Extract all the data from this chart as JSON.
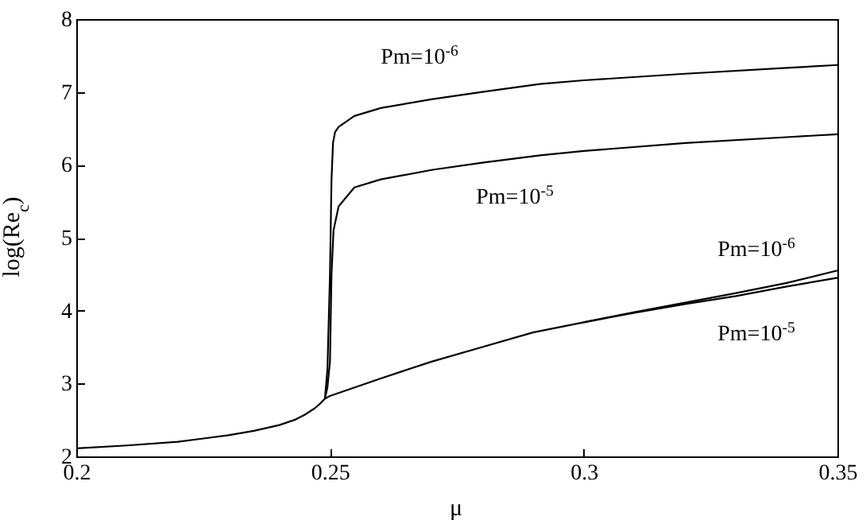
{
  "chart_data": {
    "type": "line",
    "xlabel": "μ",
    "ylabel": "log(Re$_{c}$)",
    "xlim": [
      0.2,
      0.35
    ],
    "xticks": [
      0.2,
      0.25,
      0.3,
      0.35
    ],
    "ylim": [
      2,
      8
    ],
    "yticks": [
      2,
      3,
      4,
      5,
      6,
      7,
      8
    ],
    "grid": false,
    "marker": "none",
    "line_style": "solid",
    "series": [
      {
        "color": "#000000",
        "x": [
          0.2,
          0.21,
          0.22,
          0.23,
          0.235,
          0.24,
          0.243,
          0.245,
          0.247,
          0.248,
          0.249,
          0.2495,
          0.25,
          0.2503,
          0.2506,
          0.251,
          0.2517,
          0.2548,
          0.26,
          0.27,
          0.28,
          0.2914,
          0.3,
          0.32,
          0.34,
          0.35
        ],
        "values": [
          2.11,
          2.15,
          2.2,
          2.29,
          2.35,
          2.43,
          2.5,
          2.57,
          2.66,
          2.72,
          2.79,
          3.2,
          4.5,
          5.8,
          6.3,
          6.45,
          6.52,
          6.67,
          6.78,
          6.9,
          7.0,
          7.11,
          7.16,
          7.25,
          7.33,
          7.37
        ]
      },
      {
        "color": "#000000",
        "x": [
          0.249,
          0.2495,
          0.25,
          0.2503,
          0.2507,
          0.2517,
          0.2548,
          0.26,
          0.27,
          0.28,
          0.2914,
          0.3,
          0.32,
          0.34,
          0.35
        ],
        "values": [
          2.79,
          2.95,
          3.3,
          4.5,
          5.1,
          5.43,
          5.69,
          5.8,
          5.93,
          6.03,
          6.13,
          6.19,
          6.3,
          6.38,
          6.42
        ]
      },
      {
        "color": "#000000",
        "x": [
          0.249,
          0.25,
          0.26,
          0.27,
          0.28,
          0.29,
          0.3,
          0.31,
          0.32,
          0.33,
          0.34,
          0.35
        ],
        "values": [
          2.79,
          2.83,
          3.07,
          3.3,
          3.5,
          3.7,
          3.84,
          3.98,
          4.11,
          4.24,
          4.38,
          4.55
        ]
      },
      {
        "color": "#000000",
        "x": [
          0.3,
          0.31,
          0.32,
          0.33,
          0.34,
          0.35
        ],
        "values": [
          3.84,
          3.97,
          4.09,
          4.2,
          4.33,
          4.45
        ]
      }
    ],
    "annotations": [
      "Pm=10$^{-6}$",
      "Pm=10$^{-5}$",
      "Pm=10$^{-6}$",
      "Pm=10$^{-5}$"
    ]
  }
}
